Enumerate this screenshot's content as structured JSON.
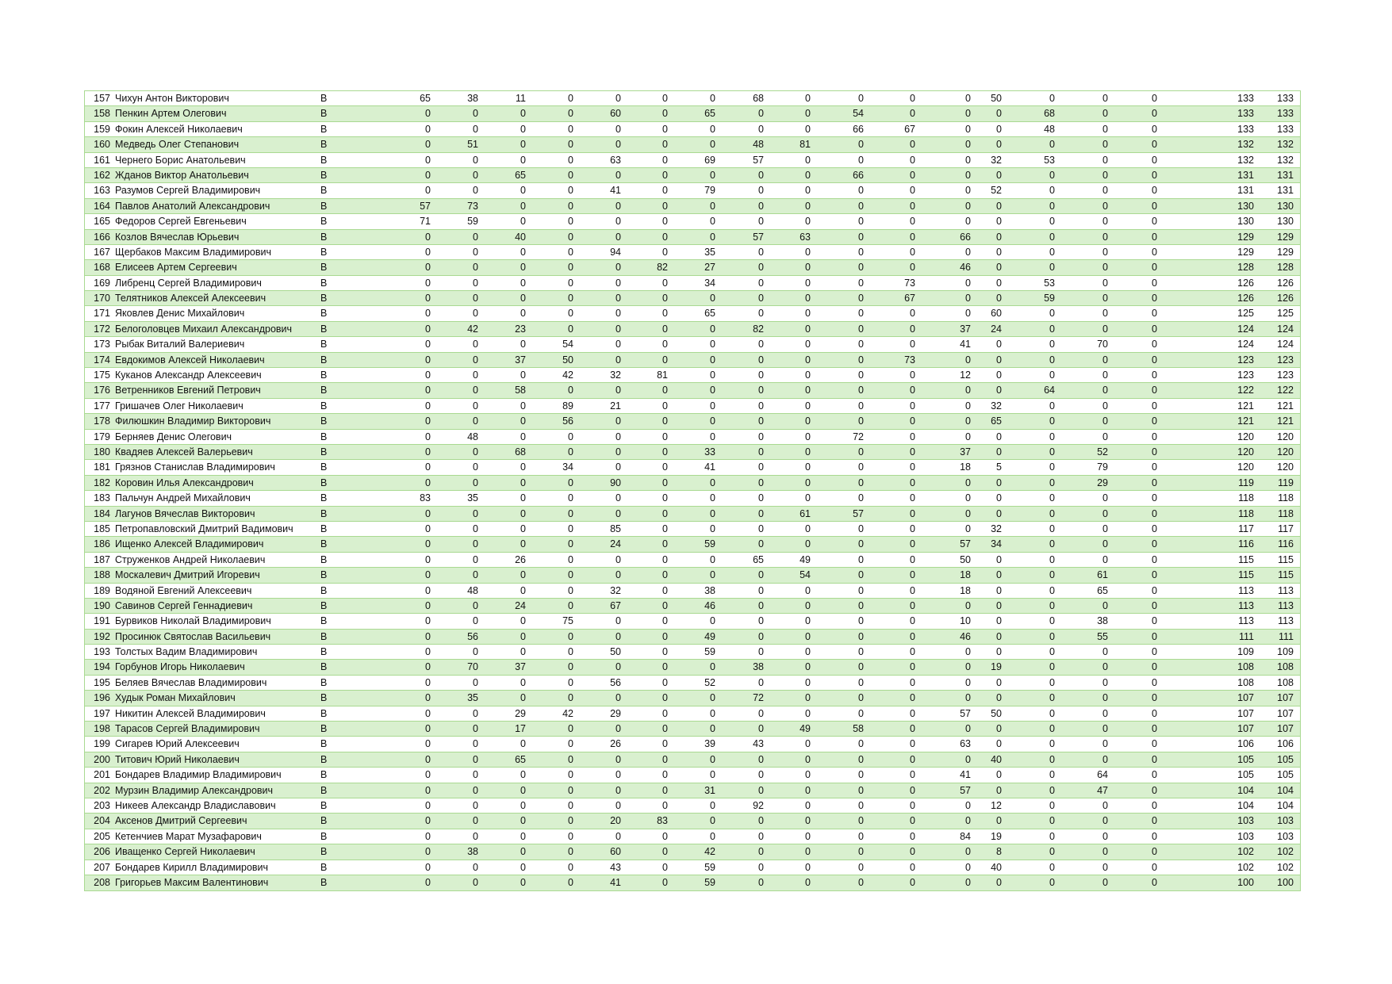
{
  "table": {
    "rows": [
      {
        "n": "157",
        "name": "Чихун Антон Викторович",
        "g": "В",
        "s": [
          65,
          38,
          11,
          0,
          0,
          0,
          0,
          68,
          0,
          0,
          0,
          0,
          50,
          0,
          0,
          0
        ],
        "t1": "133",
        "t2": "133"
      },
      {
        "n": "158",
        "name": "Пенкин Артем Олегович",
        "g": "В",
        "s": [
          0,
          0,
          0,
          0,
          60,
          0,
          65,
          0,
          0,
          54,
          0,
          0,
          0,
          68,
          0,
          0
        ],
        "t1": "133",
        "t2": "133"
      },
      {
        "n": "159",
        "name": "Фокин Алексей Николаевич",
        "g": "В",
        "s": [
          0,
          0,
          0,
          0,
          0,
          0,
          0,
          0,
          0,
          66,
          67,
          0,
          0,
          48,
          0,
          0
        ],
        "t1": "133",
        "t2": "133"
      },
      {
        "n": "160",
        "name": "Медведь Олег Степанович",
        "g": "В",
        "s": [
          0,
          51,
          0,
          0,
          0,
          0,
          0,
          48,
          81,
          0,
          0,
          0,
          0,
          0,
          0,
          0
        ],
        "t1": "132",
        "t2": "132"
      },
      {
        "n": "161",
        "name": "Чернего Борис Анатольевич",
        "g": "В",
        "s": [
          0,
          0,
          0,
          0,
          63,
          0,
          69,
          57,
          0,
          0,
          0,
          0,
          32,
          53,
          0,
          0
        ],
        "t1": "132",
        "t2": "132"
      },
      {
        "n": "162",
        "name": "Жданов Виктор Анатольевич",
        "g": "В",
        "s": [
          0,
          0,
          65,
          0,
          0,
          0,
          0,
          0,
          0,
          66,
          0,
          0,
          0,
          0,
          0,
          0
        ],
        "t1": "131",
        "t2": "131"
      },
      {
        "n": "163",
        "name": "Разумов Сергей Владимирович",
        "g": "В",
        "s": [
          0,
          0,
          0,
          0,
          41,
          0,
          79,
          0,
          0,
          0,
          0,
          0,
          52,
          0,
          0,
          0
        ],
        "t1": "131",
        "t2": "131"
      },
      {
        "n": "164",
        "name": "Павлов Анатолий Александрович",
        "g": "В",
        "s": [
          57,
          73,
          0,
          0,
          0,
          0,
          0,
          0,
          0,
          0,
          0,
          0,
          0,
          0,
          0,
          0
        ],
        "t1": "130",
        "t2": "130"
      },
      {
        "n": "165",
        "name": "Федоров Сергей Евгеньевич",
        "g": "В",
        "s": [
          71,
          59,
          0,
          0,
          0,
          0,
          0,
          0,
          0,
          0,
          0,
          0,
          0,
          0,
          0,
          0
        ],
        "t1": "130",
        "t2": "130"
      },
      {
        "n": "166",
        "name": "Козлов Вячеслав Юрьевич",
        "g": "В",
        "s": [
          0,
          0,
          40,
          0,
          0,
          0,
          0,
          57,
          63,
          0,
          0,
          66,
          0,
          0,
          0,
          0
        ],
        "t1": "129",
        "t2": "129"
      },
      {
        "n": "167",
        "name": "Щербаков Максим Владимирович",
        "g": "В",
        "s": [
          0,
          0,
          0,
          0,
          94,
          0,
          35,
          0,
          0,
          0,
          0,
          0,
          0,
          0,
          0,
          0
        ],
        "t1": "129",
        "t2": "129"
      },
      {
        "n": "168",
        "name": "Елисеев Артем Сергеевич",
        "g": "В",
        "s": [
          0,
          0,
          0,
          0,
          0,
          82,
          27,
          0,
          0,
          0,
          0,
          46,
          0,
          0,
          0,
          0
        ],
        "t1": "128",
        "t2": "128"
      },
      {
        "n": "169",
        "name": "Либренц Сергей Владимирович",
        "g": "В",
        "s": [
          0,
          0,
          0,
          0,
          0,
          0,
          34,
          0,
          0,
          0,
          73,
          0,
          0,
          53,
          0,
          0
        ],
        "t1": "126",
        "t2": "126"
      },
      {
        "n": "170",
        "name": "Телятников Алексей Алексеевич",
        "g": "В",
        "s": [
          0,
          0,
          0,
          0,
          0,
          0,
          0,
          0,
          0,
          0,
          67,
          0,
          0,
          59,
          0,
          0
        ],
        "t1": "126",
        "t2": "126"
      },
      {
        "n": "171",
        "name": "Яковлев Денис Михайлович",
        "g": "В",
        "s": [
          0,
          0,
          0,
          0,
          0,
          0,
          65,
          0,
          0,
          0,
          0,
          0,
          60,
          0,
          0,
          0
        ],
        "t1": "125",
        "t2": "125"
      },
      {
        "n": "172",
        "name": "Белоголовцев Михаил Александрович",
        "g": "В",
        "s": [
          0,
          42,
          23,
          0,
          0,
          0,
          0,
          82,
          0,
          0,
          0,
          37,
          24,
          0,
          0,
          0
        ],
        "t1": "124",
        "t2": "124"
      },
      {
        "n": "173",
        "name": "Рыбак Виталий Валериевич",
        "g": "В",
        "s": [
          0,
          0,
          0,
          54,
          0,
          0,
          0,
          0,
          0,
          0,
          0,
          41,
          0,
          0,
          70,
          0
        ],
        "t1": "124",
        "t2": "124"
      },
      {
        "n": "174",
        "name": "Евдокимов Алексей Николаевич",
        "g": "В",
        "s": [
          0,
          0,
          37,
          50,
          0,
          0,
          0,
          0,
          0,
          0,
          73,
          0,
          0,
          0,
          0,
          0
        ],
        "t1": "123",
        "t2": "123"
      },
      {
        "n": "175",
        "name": "Куканов Александр Алексеевич",
        "g": "В",
        "s": [
          0,
          0,
          0,
          42,
          32,
          81,
          0,
          0,
          0,
          0,
          0,
          12,
          0,
          0,
          0,
          0
        ],
        "t1": "123",
        "t2": "123"
      },
      {
        "n": "176",
        "name": "Ветренников Евгений Петрович",
        "g": "В",
        "s": [
          0,
          0,
          58,
          0,
          0,
          0,
          0,
          0,
          0,
          0,
          0,
          0,
          0,
          64,
          0,
          0
        ],
        "t1": "122",
        "t2": "122"
      },
      {
        "n": "177",
        "name": "Гришачев Олег Николаевич",
        "g": "В",
        "s": [
          0,
          0,
          0,
          89,
          21,
          0,
          0,
          0,
          0,
          0,
          0,
          0,
          32,
          0,
          0,
          0
        ],
        "t1": "121",
        "t2": "121"
      },
      {
        "n": "178",
        "name": "Филюшкин Владимир Викторович",
        "g": "В",
        "s": [
          0,
          0,
          0,
          56,
          0,
          0,
          0,
          0,
          0,
          0,
          0,
          0,
          65,
          0,
          0,
          0
        ],
        "t1": "121",
        "t2": "121"
      },
      {
        "n": "179",
        "name": "Берняев Денис Олегович",
        "g": "В",
        "s": [
          0,
          48,
          0,
          0,
          0,
          0,
          0,
          0,
          0,
          72,
          0,
          0,
          0,
          0,
          0,
          0
        ],
        "t1": "120",
        "t2": "120"
      },
      {
        "n": "180",
        "name": "Квадяев Алексей Валерьевич",
        "g": "В",
        "s": [
          0,
          0,
          68,
          0,
          0,
          0,
          33,
          0,
          0,
          0,
          0,
          37,
          0,
          0,
          52,
          0
        ],
        "t1": "120",
        "t2": "120"
      },
      {
        "n": "181",
        "name": "Грязнов Станислав Владимирович",
        "g": "В",
        "s": [
          0,
          0,
          0,
          34,
          0,
          0,
          41,
          0,
          0,
          0,
          0,
          18,
          5,
          0,
          79,
          0
        ],
        "t1": "120",
        "t2": "120"
      },
      {
        "n": "182",
        "name": "Коровин Илья Александрович",
        "g": "В",
        "s": [
          0,
          0,
          0,
          0,
          90,
          0,
          0,
          0,
          0,
          0,
          0,
          0,
          0,
          0,
          29,
          0
        ],
        "t1": "119",
        "t2": "119"
      },
      {
        "n": "183",
        "name": "Пальчун Андрей Михайлович",
        "g": "В",
        "s": [
          83,
          35,
          0,
          0,
          0,
          0,
          0,
          0,
          0,
          0,
          0,
          0,
          0,
          0,
          0,
          0
        ],
        "t1": "118",
        "t2": "118"
      },
      {
        "n": "184",
        "name": "Лагунов Вячеслав Викторович",
        "g": "В",
        "s": [
          0,
          0,
          0,
          0,
          0,
          0,
          0,
          0,
          61,
          57,
          0,
          0,
          0,
          0,
          0,
          0
        ],
        "t1": "118",
        "t2": "118"
      },
      {
        "n": "185",
        "name": "Петропавловский Дмитрий Вадимович",
        "g": "В",
        "s": [
          0,
          0,
          0,
          0,
          85,
          0,
          0,
          0,
          0,
          0,
          0,
          0,
          32,
          0,
          0,
          0
        ],
        "t1": "117",
        "t2": "117"
      },
      {
        "n": "186",
        "name": "Ищенко Алексей Владимирович",
        "g": "В",
        "s": [
          0,
          0,
          0,
          0,
          24,
          0,
          59,
          0,
          0,
          0,
          0,
          57,
          34,
          0,
          0,
          0
        ],
        "t1": "116",
        "t2": "116"
      },
      {
        "n": "187",
        "name": "Струженков Андрей Николаевич",
        "g": "В",
        "s": [
          0,
          0,
          26,
          0,
          0,
          0,
          0,
          65,
          49,
          0,
          0,
          50,
          0,
          0,
          0,
          0
        ],
        "t1": "115",
        "t2": "115"
      },
      {
        "n": "188",
        "name": "Москалевич Дмитрий Игоревич",
        "g": "В",
        "s": [
          0,
          0,
          0,
          0,
          0,
          0,
          0,
          0,
          54,
          0,
          0,
          18,
          0,
          0,
          61,
          0
        ],
        "t1": "115",
        "t2": "115"
      },
      {
        "n": "189",
        "name": "Водяной Евгений Алексеевич",
        "g": "В",
        "s": [
          0,
          48,
          0,
          0,
          32,
          0,
          38,
          0,
          0,
          0,
          0,
          18,
          0,
          0,
          65,
          0
        ],
        "t1": "113",
        "t2": "113"
      },
      {
        "n": "190",
        "name": "Савинов Сергей Геннадиевич",
        "g": "В",
        "s": [
          0,
          0,
          24,
          0,
          67,
          0,
          46,
          0,
          0,
          0,
          0,
          0,
          0,
          0,
          0,
          0
        ],
        "t1": "113",
        "t2": "113"
      },
      {
        "n": "191",
        "name": "Бурвиков Николай Владимирович",
        "g": "В",
        "s": [
          0,
          0,
          0,
          75,
          0,
          0,
          0,
          0,
          0,
          0,
          0,
          10,
          0,
          0,
          38,
          0
        ],
        "t1": "113",
        "t2": "113"
      },
      {
        "n": "192",
        "name": "Просинюк Святослав Васильевич",
        "g": "В",
        "s": [
          0,
          56,
          0,
          0,
          0,
          0,
          49,
          0,
          0,
          0,
          0,
          46,
          0,
          0,
          55,
          0
        ],
        "t1": "111",
        "t2": "111"
      },
      {
        "n": "193",
        "name": "Толстых Вадим Владимирович",
        "g": "В",
        "s": [
          0,
          0,
          0,
          0,
          50,
          0,
          59,
          0,
          0,
          0,
          0,
          0,
          0,
          0,
          0,
          0
        ],
        "t1": "109",
        "t2": "109"
      },
      {
        "n": "194",
        "name": "Горбунов Игорь Николаевич",
        "g": "В",
        "s": [
          0,
          70,
          37,
          0,
          0,
          0,
          0,
          38,
          0,
          0,
          0,
          0,
          19,
          0,
          0,
          0
        ],
        "t1": "108",
        "t2": "108"
      },
      {
        "n": "195",
        "name": "Беляев Вячеслав Владимирович",
        "g": "В",
        "s": [
          0,
          0,
          0,
          0,
          56,
          0,
          52,
          0,
          0,
          0,
          0,
          0,
          0,
          0,
          0,
          0
        ],
        "t1": "108",
        "t2": "108"
      },
      {
        "n": "196",
        "name": "Худык Роман Михайлович",
        "g": "В",
        "s": [
          0,
          35,
          0,
          0,
          0,
          0,
          0,
          72,
          0,
          0,
          0,
          0,
          0,
          0,
          0,
          0
        ],
        "t1": "107",
        "t2": "107"
      },
      {
        "n": "197",
        "name": "Никитин Алексей Владимирович",
        "g": "В",
        "s": [
          0,
          0,
          29,
          42,
          29,
          0,
          0,
          0,
          0,
          0,
          0,
          57,
          50,
          0,
          0,
          0
        ],
        "t1": "107",
        "t2": "107"
      },
      {
        "n": "198",
        "name": "Тарасов Сергей Владимирович",
        "g": "В",
        "s": [
          0,
          0,
          17,
          0,
          0,
          0,
          0,
          0,
          49,
          58,
          0,
          0,
          0,
          0,
          0,
          0
        ],
        "t1": "107",
        "t2": "107"
      },
      {
        "n": "199",
        "name": "Сигарев Юрий Алексеевич",
        "g": "В",
        "s": [
          0,
          0,
          0,
          0,
          26,
          0,
          39,
          43,
          0,
          0,
          0,
          63,
          0,
          0,
          0,
          0
        ],
        "t1": "106",
        "t2": "106"
      },
      {
        "n": "200",
        "name": "Титович Юрий Николаевич",
        "g": "В",
        "s": [
          0,
          0,
          65,
          0,
          0,
          0,
          0,
          0,
          0,
          0,
          0,
          0,
          40,
          0,
          0,
          0
        ],
        "t1": "105",
        "t2": "105"
      },
      {
        "n": "201",
        "name": "Бондарев Владимир Владимирович",
        "g": "В",
        "s": [
          0,
          0,
          0,
          0,
          0,
          0,
          0,
          0,
          0,
          0,
          0,
          41,
          0,
          0,
          64,
          0
        ],
        "t1": "105",
        "t2": "105"
      },
      {
        "n": "202",
        "name": "Мурзин Владимир Александрович",
        "g": "В",
        "s": [
          0,
          0,
          0,
          0,
          0,
          0,
          31,
          0,
          0,
          0,
          0,
          57,
          0,
          0,
          47,
          0
        ],
        "t1": "104",
        "t2": "104"
      },
      {
        "n": "203",
        "name": "Никеев Александр Владиславович",
        "g": "В",
        "s": [
          0,
          0,
          0,
          0,
          0,
          0,
          0,
          92,
          0,
          0,
          0,
          0,
          12,
          0,
          0,
          0
        ],
        "t1": "104",
        "t2": "104"
      },
      {
        "n": "204",
        "name": "Аксенов Дмитрий Сергеевич",
        "g": "В",
        "s": [
          0,
          0,
          0,
          0,
          20,
          83,
          0,
          0,
          0,
          0,
          0,
          0,
          0,
          0,
          0,
          0
        ],
        "t1": "103",
        "t2": "103"
      },
      {
        "n": "205",
        "name": "Кетенчиев Марат Музафарович",
        "g": "В",
        "s": [
          0,
          0,
          0,
          0,
          0,
          0,
          0,
          0,
          0,
          0,
          0,
          84,
          19,
          0,
          0,
          0
        ],
        "t1": "103",
        "t2": "103"
      },
      {
        "n": "206",
        "name": "Иващенко Сергей Николаевич",
        "g": "В",
        "s": [
          0,
          38,
          0,
          0,
          60,
          0,
          42,
          0,
          0,
          0,
          0,
          0,
          8,
          0,
          0,
          0
        ],
        "t1": "102",
        "t2": "102"
      },
      {
        "n": "207",
        "name": "Бондарев Кирилл Владимирович",
        "g": "В",
        "s": [
          0,
          0,
          0,
          0,
          43,
          0,
          59,
          0,
          0,
          0,
          0,
          0,
          40,
          0,
          0,
          0
        ],
        "t1": "102",
        "t2": "102"
      },
      {
        "n": "208",
        "name": "Григорьев Максим Валентинович",
        "g": "В",
        "s": [
          0,
          0,
          0,
          0,
          41,
          0,
          59,
          0,
          0,
          0,
          0,
          0,
          0,
          0,
          0,
          0
        ],
        "t1": "100",
        "t2": "100"
      }
    ]
  },
  "colors": {
    "border": "#a9d991",
    "band": "#d9f0cf"
  }
}
